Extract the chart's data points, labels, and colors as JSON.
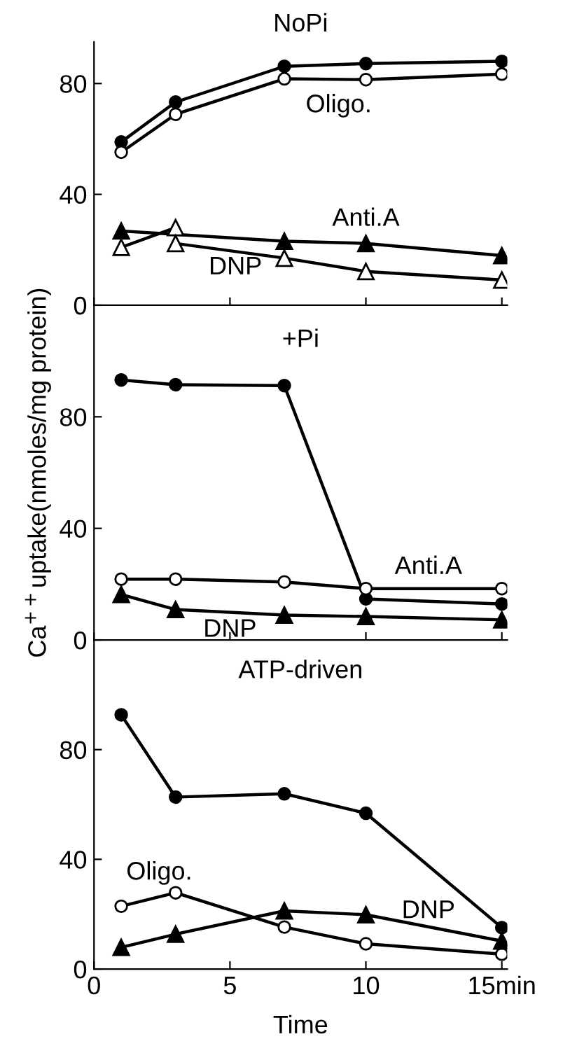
{
  "chart_data": [
    {
      "type": "line",
      "title": "NoPi",
      "x": [
        1,
        3,
        7,
        10,
        15
      ],
      "xlim": [
        0,
        15.2
      ],
      "xticks": [
        0,
        5,
        10,
        15
      ],
      "ylim": [
        0,
        95
      ],
      "yticks": [
        0,
        40,
        80
      ],
      "tick_labels": "y",
      "grid": false,
      "legend": false,
      "series": [
        {
          "color": "#000000",
          "marker": "circle",
          "values": [
            58.9,
            73.3,
            86.2,
            87.2,
            88.0
          ]
        },
        {
          "name": "Oligo.",
          "color": "#000000",
          "marker": "circle",
          "values": [
            55.2,
            68.9,
            81.7,
            81.4,
            83.4
          ]
        },
        {
          "name": "Anti.A",
          "color": "#000000",
          "marker": "triangle",
          "x": [
            1,
            7,
            10,
            15
          ],
          "values": [
            26.8,
            23.1,
            22.3,
            17.9
          ]
        },
        {
          "name": "DNP",
          "color": "#000000",
          "marker": "triangle",
          "x": [
            1,
            3,
            3,
            7,
            10,
            15
          ],
          "values": [
            20.9,
            28.0,
            22.3,
            17.0,
            12.2,
            9.1
          ]
        }
      ]
    },
    {
      "type": "line",
      "title": "+Pi",
      "ylabel": "Ca$^{++}$uptake(nmoles/mg protein)",
      "x": [
        1,
        3,
        7,
        10,
        15
      ],
      "xlim": [
        0,
        15.2
      ],
      "xticks": [
        0,
        5,
        10,
        15
      ],
      "ylim": [
        0,
        120
      ],
      "yticks": [
        0,
        40,
        80
      ],
      "tick_labels": "y",
      "grid": false,
      "legend": false,
      "series": [
        {
          "color": "#000000",
          "marker": "circle",
          "values": [
            93.2,
            91.5,
            91.2,
            14.7,
            12.9
          ]
        },
        {
          "name": "Anti.A",
          "color": "#000000",
          "marker": "circle",
          "values": [
            21.8,
            21.8,
            20.8,
            18.4,
            18.4
          ]
        },
        {
          "name": "DNP",
          "color": "#000000",
          "marker": "triangle",
          "values": [
            16.3,
            10.9,
            8.9,
            8.4,
            7.2
          ]
        }
      ]
    },
    {
      "type": "line",
      "title": "ATP-driven",
      "xlabel": "Time",
      "x": [
        1,
        3,
        7,
        10,
        15
      ],
      "xlim": [
        0,
        15.2
      ],
      "xticks": [
        0,
        5,
        10,
        {
          "value": 15,
          "label": "15min"
        }
      ],
      "ylim": [
        0,
        120
      ],
      "yticks": [
        0,
        40,
        80
      ],
      "grid": false,
      "legend": false,
      "series": [
        {
          "color": "#000000",
          "marker": "circle",
          "values": [
            92.7,
            62.7,
            63.9,
            56.8,
            15.1
          ]
        },
        {
          "name": "Oligo.",
          "color": "#000000",
          "marker": "circle",
          "values": [
            22.9,
            27.8,
            15.3,
            9.2,
            5.4
          ]
        },
        {
          "name": "DNP",
          "color": "#000000",
          "marker": "triangle",
          "values": [
            7.9,
            12.7,
            21.2,
            19.8,
            10.2
          ]
        }
      ]
    }
  ]
}
